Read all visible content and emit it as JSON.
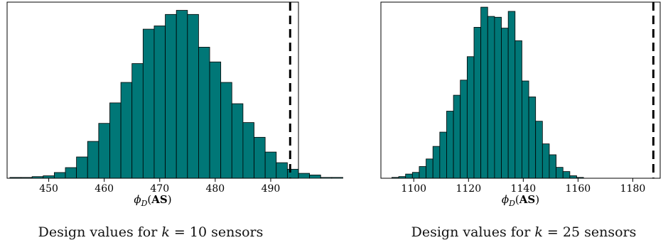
{
  "chart_data": [
    {
      "type": "histogram",
      "xlabel": "ϕD(AS)",
      "xlim": [
        442.5,
        495
      ],
      "xticks": [
        450,
        460,
        470,
        480,
        490
      ],
      "bin_edges_start": 443,
      "bin_width": 2,
      "counts": [
        1,
        1,
        2,
        3,
        7,
        13,
        26,
        45,
        67,
        92,
        117,
        140,
        182,
        186,
        200,
        205,
        200,
        160,
        142,
        117,
        91,
        68,
        50,
        32,
        19,
        11,
        6,
        4,
        1,
        1,
        0
      ],
      "ylim": [
        0,
        215
      ],
      "reference_line": {
        "x": 493.5,
        "style": "dashed"
      },
      "bar_color": "#007777",
      "caption": "Design values for k = 10 sensors"
    },
    {
      "type": "histogram",
      "xlabel": "ϕD(AS)",
      "xlim": [
        1088,
        1190
      ],
      "xticks": [
        1100,
        1120,
        1140,
        1160,
        1180
      ],
      "bin_edges_start": 1092,
      "bin_width": 2.5,
      "counts": [
        1,
        2,
        5,
        7,
        14,
        23,
        38,
        55,
        80,
        99,
        117,
        145,
        180,
        204,
        193,
        192,
        179,
        199,
        164,
        116,
        97,
        68,
        41,
        28,
        13,
        8,
        3,
        1
      ],
      "ylim": [
        0,
        210
      ],
      "reference_line": {
        "x": 1187.5,
        "style": "dashed"
      },
      "bar_color": "#007777",
      "caption": "Design values for k = 25 sensors"
    }
  ],
  "xlabel_parts": {
    "symbol": "ϕ",
    "subscript": "D",
    "argument": "AS"
  },
  "captions": {
    "left": {
      "prefix": "Design values for ",
      "var": "k",
      "rest": " = 10 sensors"
    },
    "right": {
      "prefix": "Design values for ",
      "var": "k",
      "rest": " = 25 sensors"
    }
  }
}
